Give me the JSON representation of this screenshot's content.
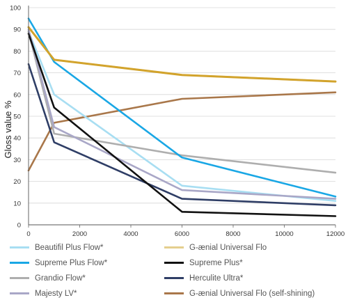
{
  "chart_data": {
    "type": "line",
    "title": "",
    "xlabel": "",
    "ylabel": "Gloss value %",
    "xlim": [
      0,
      12000
    ],
    "ylim": [
      0,
      100
    ],
    "x_ticks": [
      "0",
      "2000",
      "4000",
      "6000",
      "8000",
      "10000",
      "12000"
    ],
    "y_ticks": [
      "0",
      "10",
      "20",
      "30",
      "40",
      "50",
      "60",
      "70",
      "80",
      "90",
      "100"
    ],
    "grid": "horizontal",
    "legend_position": "bottom",
    "series": [
      {
        "name": "Beautifil Plus Flow*",
        "color": "#a8def2",
        "x": [
          0,
          1000,
          6000,
          12000
        ],
        "y": [
          89,
          60,
          18,
          11
        ]
      },
      {
        "name": "Supreme Plus Flow*",
        "color": "#19a7e5",
        "x": [
          0,
          1000,
          6000,
          12000
        ],
        "y": [
          95,
          75,
          31,
          13
        ]
      },
      {
        "name": "Grandio Flow*",
        "color": "#aeaeae",
        "x": [
          0,
          1000,
          6000,
          12000
        ],
        "y": [
          89,
          42,
          32,
          24
        ]
      },
      {
        "name": "Majesty LV*",
        "color": "#a9a7c7",
        "x": [
          0,
          1000,
          6000,
          12000
        ],
        "y": [
          90,
          45,
          16,
          12
        ]
      },
      {
        "name": "G-ænial Universal Flo",
        "color": "#e5cf8e",
        "x": [
          0,
          1000,
          6000,
          12000
        ],
        "y": [
          91,
          76,
          69,
          66
        ]
      },
      {
        "name": "Supreme Plus*",
        "color": "#111111",
        "x": [
          0,
          1000,
          6000,
          12000
        ],
        "y": [
          88,
          54,
          6,
          4
        ]
      },
      {
        "name": "Herculite Ultra*",
        "color": "#2f3e66",
        "x": [
          0,
          1000,
          6000,
          12000
        ],
        "y": [
          74,
          38,
          12,
          9
        ]
      },
      {
        "name": "G-ænial Universal Flo (self-shining)",
        "color": "#a9774a",
        "x": [
          0,
          1000,
          6000,
          12000
        ],
        "y": [
          25,
          47,
          58,
          61
        ]
      }
    ]
  },
  "overlay": {
    "name": "G-ænial Universal Flo",
    "color": "#d2a32c",
    "x": [
      0,
      1000,
      6000,
      12000
    ],
    "y": [
      91,
      76,
      69,
      66
    ]
  }
}
